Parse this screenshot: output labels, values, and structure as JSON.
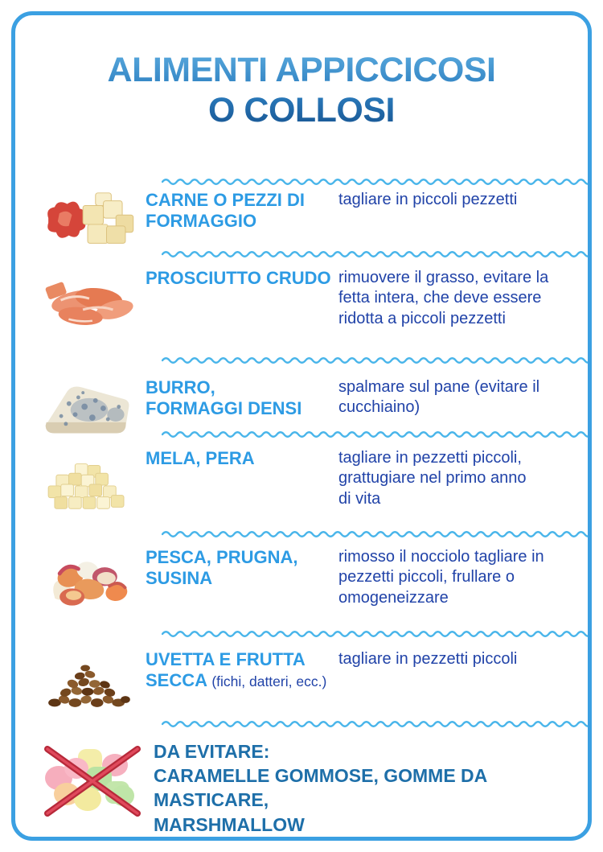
{
  "title": {
    "line1": "ALIMENTI APPICCICOSI",
    "line2": "O COLLOSI"
  },
  "colors": {
    "frame_border": "#3ba0e2",
    "wave": "#49b5ea",
    "label_blue": "#2d9be4",
    "instruction_blue": "#2143a8",
    "avoid_blue": "#1e6fa9",
    "cross_red": "#b7293a",
    "title_gradient_top": "#5aaade",
    "title_gradient_bottom": "#16528f"
  },
  "rows": [
    {
      "image": "meat-and-cheese-cubes",
      "label": "CARNE O PEZZI DI\nFORMAGGIO",
      "instruction": "tagliare in piccoli pezzetti"
    },
    {
      "image": "prosciutto-crudo-pieces",
      "label": "PROSCIUTTO CRUDO",
      "instruction": "rimuovere il grasso, evitare la\nfetta intera, che deve essere\nridotta a piccoli pezzetti"
    },
    {
      "image": "blue-cheese-wedge",
      "label": "BURRO,\nFORMAGGI DENSI",
      "instruction": "spalmare sul pane (evitare il\ncucchiaino)"
    },
    {
      "image": "apple-pear-cubes",
      "label": "MELA, PERA",
      "instruction": "tagliare in pezzetti piccoli,\ngrattugiare nel primo anno\ndi vita"
    },
    {
      "image": "peach-plum-pieces",
      "label": "PESCA, PRUGNA,\nSUSINA",
      "instruction": "rimosso il nocciolo tagliare in\npezzetti piccoli, frullare o\nomogeneizzare"
    },
    {
      "image": "raisins-dried-fruit",
      "label": "UVETTA E FRUTTA\nSECCA ",
      "label_note": "(fichi, datteri, ecc.)",
      "instruction": "tagliare in pezzetti piccoli"
    }
  ],
  "avoid": {
    "image": "crossed-out-marshmallows",
    "heading": "DA EVITARE:",
    "line2": "CARAMELLE GOMMOSE, GOMME DA MASTICARE,",
    "line3": "MARSHMALLOW"
  }
}
